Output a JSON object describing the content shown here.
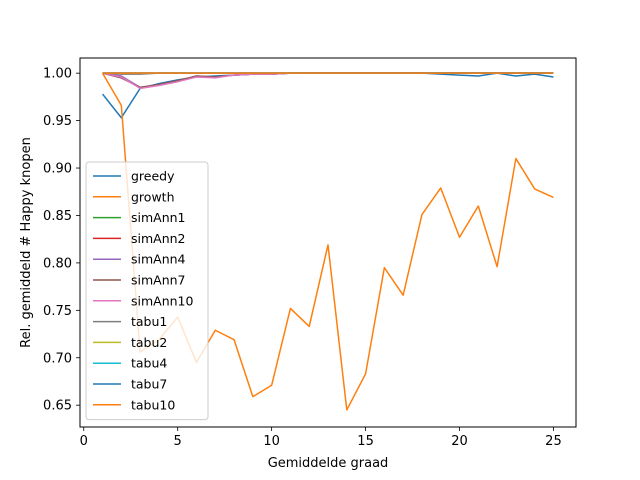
{
  "chart_data": {
    "type": "line",
    "title": "",
    "xlabel": "Gemiddelde graad",
    "ylabel": "Rel. gemiddeld # Happy knopen",
    "xlim": [
      -0.2,
      26.2
    ],
    "ylim": [
      0.627,
      1.016
    ],
    "xticks": [
      0,
      5,
      10,
      15,
      20,
      25
    ],
    "yticks": [
      0.65,
      0.7,
      0.75,
      0.8,
      0.85,
      0.9,
      0.95,
      1.0
    ],
    "ytick_labels": [
      "0.65",
      "0.70",
      "0.75",
      "0.80",
      "0.85",
      "0.90",
      "0.95",
      "1.00"
    ],
    "grid": false,
    "legend_position": "left",
    "x": [
      1,
      2,
      3,
      4,
      5,
      6,
      7,
      8,
      9,
      10,
      11,
      12,
      13,
      14,
      15,
      16,
      17,
      18,
      19,
      20,
      21,
      22,
      23,
      24,
      25
    ],
    "series": [
      {
        "name": "greedy",
        "color": "#1f77b4",
        "values": [
          0.978,
          0.953,
          0.984,
          0.989,
          0.993,
          0.996,
          0.997,
          0.998,
          0.999,
          0.999,
          1.0,
          1.0,
          1.0,
          1.0,
          1.0,
          1.0,
          1.0,
          1.0,
          0.999,
          0.998,
          0.997,
          1.0,
          0.997,
          0.999,
          0.996
        ]
      },
      {
        "name": "growth",
        "color": "#ff7f0e",
        "values": [
          1.0,
          0.966,
          0.706,
          0.719,
          0.743,
          0.695,
          0.729,
          0.719,
          0.659,
          0.671,
          0.752,
          0.733,
          0.819,
          0.645,
          0.683,
          0.795,
          0.766,
          0.851,
          0.879,
          0.827,
          0.86,
          0.796,
          0.91,
          0.878,
          0.869
        ]
      },
      {
        "name": "simAnn1",
        "color": "#2ca02c",
        "values": [
          1.0,
          1.0,
          1.0,
          1.0,
          1.0,
          1.0,
          1.0,
          1.0,
          1.0,
          1.0,
          1.0,
          1.0,
          1.0,
          1.0,
          1.0,
          1.0,
          1.0,
          1.0,
          1.0,
          1.0,
          1.0,
          1.0,
          1.0,
          1.0,
          1.0
        ]
      },
      {
        "name": "simAnn2",
        "color": "#d62728",
        "values": [
          1.0,
          1.0,
          1.0,
          1.0,
          1.0,
          1.0,
          1.0,
          1.0,
          1.0,
          1.0,
          1.0,
          1.0,
          1.0,
          1.0,
          1.0,
          1.0,
          1.0,
          1.0,
          1.0,
          1.0,
          1.0,
          1.0,
          1.0,
          1.0,
          1.0
        ]
      },
      {
        "name": "simAnn4",
        "color": "#9467bd",
        "values": [
          1.0,
          0.997,
          0.985,
          0.988,
          0.992,
          0.997,
          0.996,
          0.998,
          0.999,
          0.999,
          1.0,
          1.0,
          1.0,
          1.0,
          1.0,
          1.0,
          1.0,
          1.0,
          1.0,
          1.0,
          1.0,
          1.0,
          1.0,
          1.0,
          1.0
        ]
      },
      {
        "name": "simAnn7",
        "color": "#8c564b",
        "values": [
          1.0,
          0.995,
          0.985,
          0.988,
          0.992,
          0.997,
          0.996,
          0.998,
          0.999,
          0.999,
          1.0,
          1.0,
          1.0,
          1.0,
          1.0,
          1.0,
          1.0,
          1.0,
          1.0,
          1.0,
          1.0,
          1.0,
          1.0,
          1.0,
          1.0
        ]
      },
      {
        "name": "simAnn10",
        "color": "#e377c2",
        "values": [
          1.0,
          0.996,
          0.984,
          0.987,
          0.991,
          0.996,
          0.995,
          0.998,
          0.999,
          0.999,
          1.0,
          1.0,
          1.0,
          1.0,
          1.0,
          1.0,
          1.0,
          1.0,
          1.0,
          1.0,
          1.0,
          1.0,
          1.0,
          1.0,
          1.0
        ]
      },
      {
        "name": "tabu1",
        "color": "#7f7f7f",
        "values": [
          1.0,
          0.999,
          0.999,
          1.0,
          1.0,
          1.0,
          1.0,
          1.0,
          1.0,
          1.0,
          1.0,
          1.0,
          1.0,
          1.0,
          1.0,
          1.0,
          1.0,
          1.0,
          1.0,
          1.0,
          1.0,
          1.0,
          1.0,
          1.0,
          1.0
        ]
      },
      {
        "name": "tabu2",
        "color": "#bcbd22",
        "values": [
          1.0,
          1.0,
          1.0,
          1.0,
          1.0,
          1.0,
          1.0,
          1.0,
          1.0,
          1.0,
          1.0,
          1.0,
          1.0,
          1.0,
          1.0,
          1.0,
          1.0,
          1.0,
          1.0,
          1.0,
          1.0,
          1.0,
          1.0,
          1.0,
          1.0
        ]
      },
      {
        "name": "tabu4",
        "color": "#17becf",
        "values": [
          1.0,
          1.0,
          1.0,
          1.0,
          1.0,
          1.0,
          1.0,
          1.0,
          1.0,
          1.0,
          1.0,
          1.0,
          1.0,
          1.0,
          1.0,
          1.0,
          1.0,
          1.0,
          1.0,
          1.0,
          1.0,
          1.0,
          1.0,
          1.0,
          1.0
        ]
      },
      {
        "name": "tabu7",
        "color": "#1f77b4",
        "values": [
          1.0,
          1.0,
          1.0,
          1.0,
          1.0,
          1.0,
          1.0,
          1.0,
          1.0,
          1.0,
          1.0,
          1.0,
          1.0,
          1.0,
          1.0,
          1.0,
          1.0,
          1.0,
          1.0,
          1.0,
          1.0,
          1.0,
          1.0,
          1.0,
          1.0
        ]
      },
      {
        "name": "tabu10",
        "color": "#ff7f0e",
        "values": [
          1.0,
          1.0,
          1.0,
          1.0,
          1.0,
          1.0,
          1.0,
          1.0,
          1.0,
          1.0,
          1.0,
          1.0,
          1.0,
          1.0,
          1.0,
          1.0,
          1.0,
          1.0,
          1.0,
          1.0,
          1.0,
          1.0,
          1.0,
          1.0,
          1.0
        ]
      }
    ]
  }
}
